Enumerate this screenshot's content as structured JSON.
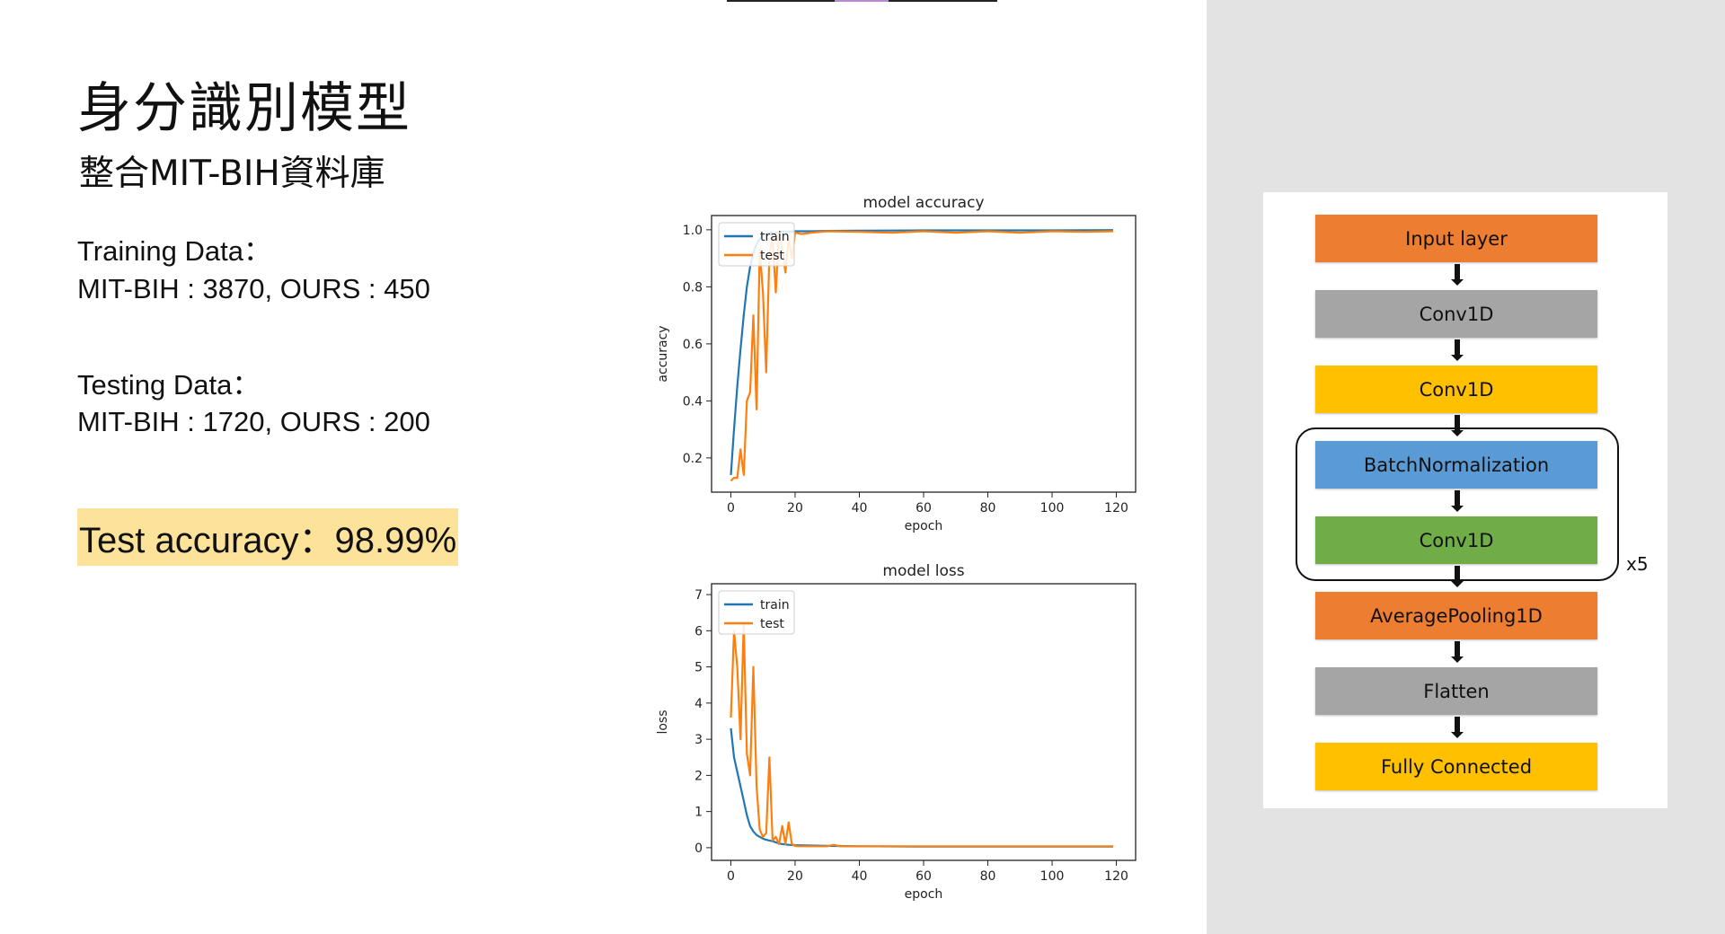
{
  "slide": {
    "title": "身分識別模型",
    "subtitle": "整合MIT-BIH資料庫",
    "training_heading": "Training Data：",
    "training_values": "MIT-BIH : 3870, OURS : 450",
    "testing_heading": "Testing Data：",
    "testing_values": "MIT-BIH : 1720, OURS : 200",
    "accuracy_label": "Test accuracy：98.99%",
    "highlight_color": "#fde39a"
  },
  "architecture": {
    "layers": [
      {
        "label": "Input layer",
        "color": "#ed7d31"
      },
      {
        "label": "Conv1D",
        "color": "#a5a5a5"
      },
      {
        "label": "Conv1D",
        "color": "#ffc000"
      },
      {
        "label": "BatchNormalization",
        "color": "#5b9bd5"
      },
      {
        "label": "Conv1D",
        "color": "#70ad47"
      },
      {
        "label": "AveragePooling1D",
        "color": "#ed7d31"
      },
      {
        "label": "Flatten",
        "color": "#a5a5a5"
      },
      {
        "label": "Fully Connected",
        "color": "#ffc000"
      }
    ],
    "repeat_label": "x5"
  },
  "chart_data": [
    {
      "type": "line",
      "title": "model accuracy",
      "xlabel": "epoch",
      "ylabel": "accuracy",
      "xlim": [
        -6,
        126
      ],
      "ylim": [
        0.08,
        1.05
      ],
      "xticks": [
        0,
        20,
        40,
        60,
        80,
        100,
        120
      ],
      "yticks": [
        0.2,
        0.4,
        0.6,
        0.8,
        1.0
      ],
      "ytick_labels": [
        "0.2",
        "0.4",
        "0.6",
        "0.8",
        "1.0"
      ],
      "grid": false,
      "legend": "upper-left",
      "series": [
        {
          "name": "train",
          "color": "#1f77b4",
          "x": [
            0,
            1,
            2,
            3,
            4,
            5,
            6,
            7,
            8,
            9,
            10,
            11,
            12,
            13,
            14,
            15,
            16,
            18,
            20,
            25,
            30,
            40,
            60,
            80,
            100,
            119
          ],
          "y": [
            0.14,
            0.3,
            0.45,
            0.58,
            0.7,
            0.8,
            0.87,
            0.92,
            0.95,
            0.97,
            0.98,
            0.985,
            0.99,
            0.99,
            0.99,
            0.99,
            0.993,
            0.993,
            0.995,
            0.995,
            0.996,
            0.997,
            0.998,
            0.998,
            0.998,
            0.999
          ]
        },
        {
          "name": "test",
          "color": "#ff7f0e",
          "x": [
            0,
            1,
            2,
            3,
            4,
            5,
            6,
            7,
            8,
            9,
            10,
            11,
            12,
            13,
            14,
            15,
            16,
            17,
            18,
            19,
            20,
            22,
            25,
            30,
            40,
            50,
            60,
            70,
            80,
            90,
            100,
            110,
            119
          ],
          "y": [
            0.12,
            0.13,
            0.13,
            0.23,
            0.14,
            0.4,
            0.43,
            0.7,
            0.37,
            0.93,
            0.78,
            0.5,
            0.92,
            0.97,
            0.78,
            0.99,
            0.93,
            0.85,
            0.97,
            0.9,
            0.99,
            0.985,
            0.99,
            0.995,
            0.993,
            0.99,
            0.995,
            0.99,
            0.995,
            0.99,
            0.995,
            0.993,
            0.995
          ]
        }
      ]
    },
    {
      "type": "line",
      "title": "model loss",
      "xlabel": "epoch",
      "ylabel": "loss",
      "xlim": [
        -6,
        126
      ],
      "ylim": [
        -0.35,
        7.3
      ],
      "xticks": [
        0,
        20,
        40,
        60,
        80,
        100,
        120
      ],
      "yticks": [
        0,
        1,
        2,
        3,
        4,
        5,
        6,
        7
      ],
      "ytick_labels": [
        "0",
        "1",
        "2",
        "3",
        "4",
        "5",
        "6",
        "7"
      ],
      "grid": false,
      "legend": "upper-left",
      "series": [
        {
          "name": "train",
          "color": "#1f77b4",
          "x": [
            0,
            1,
            2,
            3,
            4,
            5,
            6,
            7,
            8,
            9,
            10,
            11,
            12,
            13,
            14,
            15,
            16,
            18,
            20,
            25,
            30,
            40,
            60,
            80,
            100,
            119
          ],
          "y": [
            3.3,
            2.5,
            2.1,
            1.7,
            1.3,
            0.9,
            0.6,
            0.45,
            0.35,
            0.3,
            0.25,
            0.22,
            0.2,
            0.18,
            0.15,
            0.12,
            0.1,
            0.08,
            0.07,
            0.06,
            0.05,
            0.04,
            0.03,
            0.03,
            0.03,
            0.03
          ]
        },
        {
          "name": "test",
          "color": "#ff7f0e",
          "x": [
            0,
            1,
            2,
            3,
            4,
            5,
            6,
            7,
            8,
            9,
            10,
            11,
            12,
            13,
            14,
            15,
            16,
            17,
            18,
            19,
            20,
            21,
            25,
            30,
            32,
            34,
            40,
            60,
            80,
            100,
            119
          ],
          "y": [
            3.6,
            6.0,
            5.0,
            3.0,
            6.2,
            2.6,
            2.0,
            5.0,
            1.7,
            0.5,
            0.3,
            0.4,
            2.5,
            0.2,
            0.3,
            0.1,
            0.6,
            0.1,
            0.7,
            0.1,
            0.05,
            0.04,
            0.04,
            0.04,
            0.08,
            0.04,
            0.04,
            0.04,
            0.04,
            0.04,
            0.04
          ]
        }
      ]
    }
  ]
}
